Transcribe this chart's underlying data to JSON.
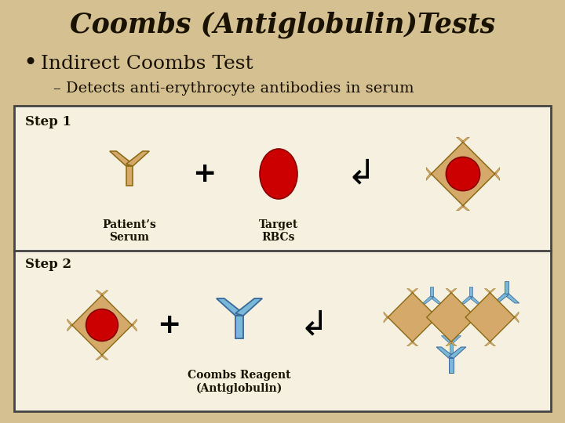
{
  "title": "Coombs (Antiglobulin)Tests",
  "bullet": "Indirect Coombs Test",
  "sub_bullet": "– Detects anti-erythrocyte antibodies in serum",
  "step1_label": "Step 1",
  "step2_label": "Step 2",
  "patient_serum_label": "Patient’s\nSerum",
  "target_rbc_label": "Target\nRBCs",
  "coombs_reagent_label": "Coombs Reagent\n(Antiglobulin)",
  "bg_color": "#D4C090",
  "box_bg": "#F5F0E0",
  "rbc_color": "#CC0000",
  "ab_tan": "#D4A96A",
  "ab_tan_edge": "#8B6914",
  "ab_blue": "#7AB8D8",
  "ab_blue_edge": "#3A6A9A",
  "text_color": "#1A1200",
  "box_edge": "#444444"
}
